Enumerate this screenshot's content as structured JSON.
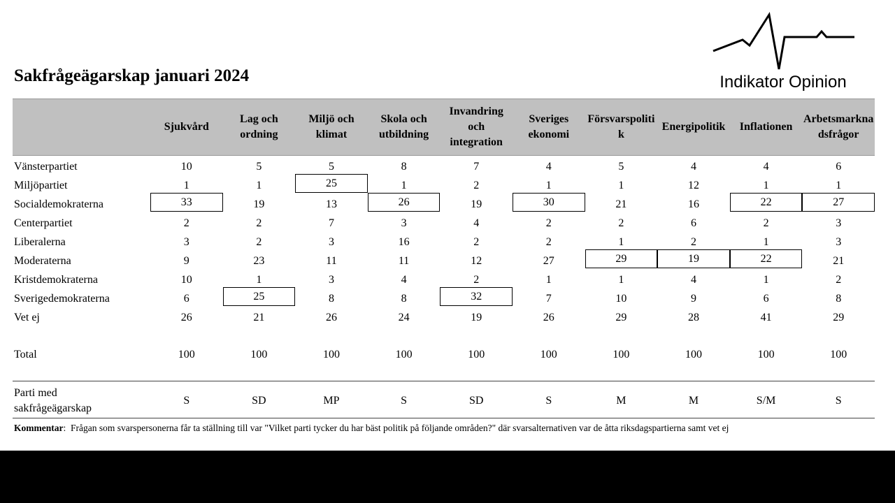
{
  "header": {
    "title": "Sakfrågeägarskap januari 2024",
    "logo": "Indikator Opinion"
  },
  "table": {
    "columns": [
      "Sjukvård",
      "Lag och ordning",
      "Miljö och klimat",
      "Skola och utbildning",
      "Invandring och integration",
      "Sveriges ekonomi",
      "Försvarspolitik",
      "Energipolitik",
      "Inflationen",
      "Arbetsmarknadsfrågor"
    ],
    "rows": [
      {
        "label": "Vänsterpartiet",
        "values": [
          10,
          5,
          5,
          8,
          7,
          4,
          5,
          4,
          4,
          6
        ],
        "boxed": []
      },
      {
        "label": "Miljöpartiet",
        "values": [
          1,
          1,
          25,
          1,
          2,
          1,
          1,
          12,
          1,
          1
        ],
        "boxed": [
          2
        ]
      },
      {
        "label": "Socialdemokraterna",
        "values": [
          33,
          19,
          13,
          26,
          19,
          30,
          21,
          16,
          22,
          27
        ],
        "boxed": [
          0,
          3,
          5,
          8,
          9
        ]
      },
      {
        "label": "Centerpartiet",
        "values": [
          2,
          2,
          7,
          3,
          4,
          2,
          2,
          6,
          2,
          3
        ],
        "boxed": []
      },
      {
        "label": "Liberalerna",
        "values": [
          3,
          2,
          3,
          16,
          2,
          2,
          1,
          2,
          1,
          3
        ],
        "boxed": []
      },
      {
        "label": "Moderaterna",
        "values": [
          9,
          23,
          11,
          11,
          12,
          27,
          29,
          19,
          22,
          21
        ],
        "boxed": [
          6,
          7,
          8
        ]
      },
      {
        "label": "Kristdemokraterna",
        "values": [
          10,
          1,
          3,
          4,
          2,
          1,
          1,
          4,
          1,
          2
        ],
        "boxed": []
      },
      {
        "label": "Sverigedemokraterna",
        "values": [
          6,
          25,
          8,
          8,
          32,
          7,
          10,
          9,
          6,
          8
        ],
        "boxed": [
          1,
          4
        ]
      },
      {
        "label": "Vet ej",
        "values": [
          26,
          21,
          26,
          24,
          19,
          26,
          29,
          28,
          41,
          29
        ],
        "boxed": []
      }
    ],
    "total": {
      "label": "Total",
      "values": [
        100,
        100,
        100,
        100,
        100,
        100,
        100,
        100,
        100,
        100
      ]
    },
    "owner": {
      "label": "Parti med sakfrågeägarskap",
      "values": [
        "S",
        "SD",
        "MP",
        "S",
        "SD",
        "S",
        "M",
        "M",
        "S/M",
        "S"
      ]
    }
  },
  "comment": {
    "label": "Kommentar",
    "text": ":  Frågan som svarspersonerna får ta ställning till var \"Vilket parti tycker du har bäst politik på följande områden?\" där svarsalternativen var de åtta riksdagspartierna samt vet ej"
  }
}
